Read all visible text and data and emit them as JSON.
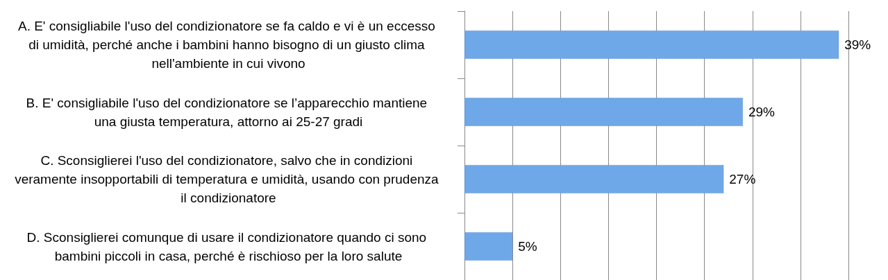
{
  "chart_data": {
    "type": "bar",
    "orientation": "horizontal",
    "categories": [
      "A. E' consigliabile l'uso del condizionatore se fa caldo e vi è un eccesso di umidità, perché anche i bambini hanno bisogno di un giusto clima nell'ambiente in cui vivono",
      "B. E' consigliabile l'uso del condizionatore se l’apparecchio mantiene una giusta temperatura, attorno ai 25-27 gradi",
      "C. Sconsiglierei l'uso del condizionatore, salvo che in condizioni veramente insopportabili di temperatura e umidità, usando con prudenza il condizionatore",
      "D. Sconsiglierei comunque di usare il condizionatore quando ci sono bambini piccoli in casa, perché è rischioso per la loro salute"
    ],
    "values": [
      39,
      29,
      27,
      5
    ],
    "value_labels": [
      "39%",
      "29%",
      "27%",
      "5%"
    ],
    "color": "#6fa8e8",
    "xlim": [
      0,
      40
    ],
    "xticks": [
      {
        "value": 0,
        "label": null
      },
      {
        "value": 5,
        "label": null
      },
      {
        "value": 10,
        "label": null
      },
      {
        "value": 15,
        "label": null
      },
      {
        "value": 20,
        "label": null
      },
      {
        "value": 25,
        "label": null
      },
      {
        "value": 30,
        "label": null
      },
      {
        "value": 35,
        "label": null
      },
      {
        "value": 40,
        "label": null
      }
    ],
    "tick_labels": "y",
    "grid": "x"
  }
}
